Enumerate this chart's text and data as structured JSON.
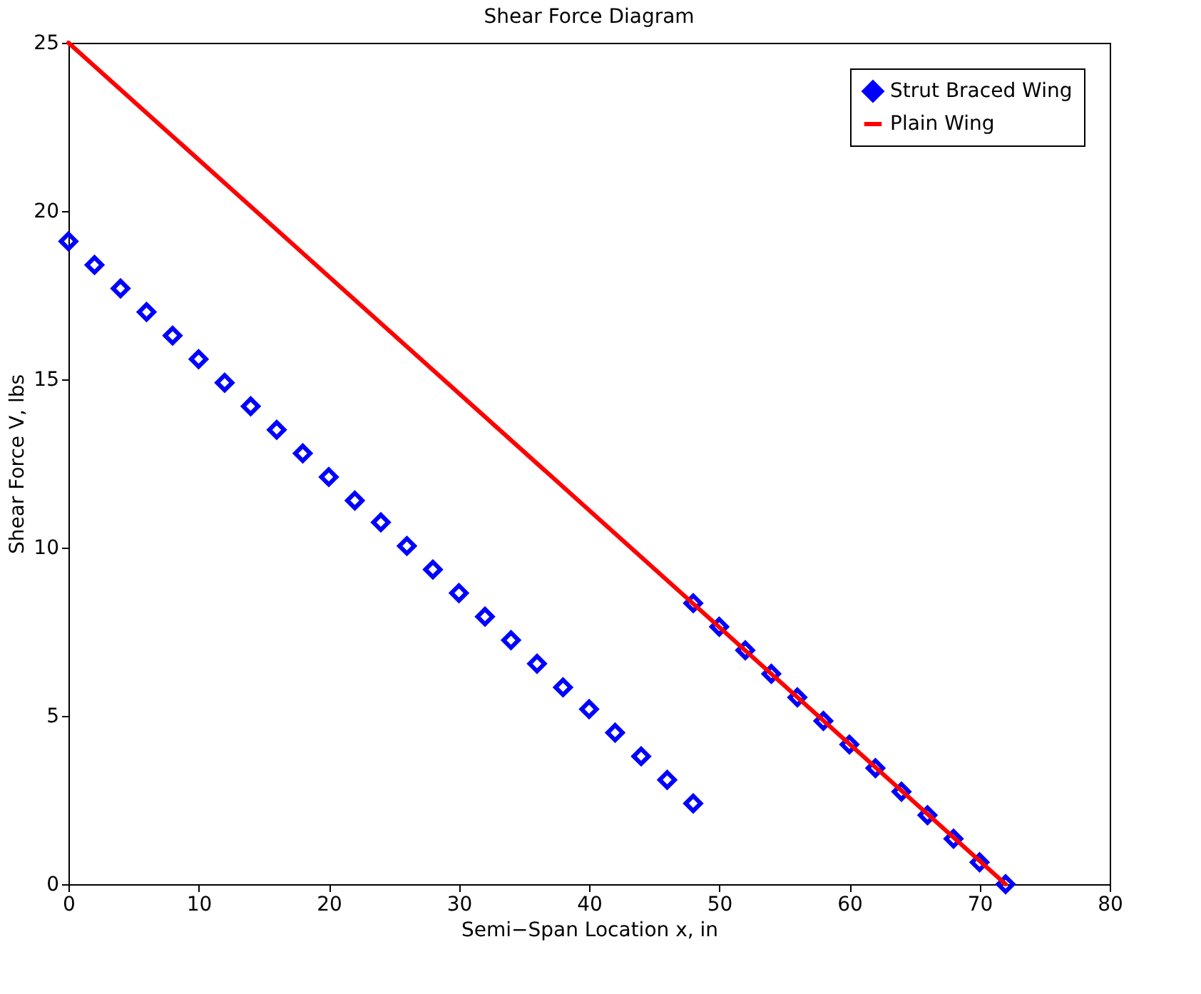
{
  "chart_data": {
    "type": "scatter",
    "title": "Shear Force Diagram",
    "xlabel": "Semi−Span Location x, in",
    "ylabel": "Shear Force V, lbs",
    "xlim": [
      0,
      80
    ],
    "ylim": [
      0,
      25
    ],
    "xticks": [
      0,
      10,
      20,
      30,
      40,
      50,
      60,
      70,
      80
    ],
    "yticks": [
      0,
      5,
      10,
      15,
      20,
      25
    ],
    "grid": false,
    "legend": "top right",
    "series": [
      {
        "name": "Strut Braced Wing",
        "type": "scatter",
        "marker": "diamond",
        "color": "#0000ff",
        "x": [
          0,
          2,
          4,
          6,
          8,
          10,
          12,
          14,
          16,
          18,
          20,
          22,
          24,
          26,
          28,
          30,
          32,
          34,
          36,
          38,
          40,
          42,
          44,
          46,
          48,
          48,
          50,
          52,
          54,
          56,
          58,
          60,
          62,
          64,
          66,
          68,
          70,
          72
        ],
        "values": [
          19.1,
          18.4,
          17.7,
          17.0,
          16.3,
          15.6,
          14.9,
          14.2,
          13.5,
          12.8,
          12.1,
          11.4,
          10.75,
          10.05,
          9.35,
          8.65,
          7.95,
          7.25,
          6.55,
          5.85,
          5.2,
          4.5,
          3.8,
          3.1,
          2.4,
          8.35,
          7.65,
          6.95,
          6.25,
          5.55,
          4.85,
          4.15,
          3.45,
          2.75,
          2.05,
          1.35,
          0.65,
          0
        ]
      },
      {
        "name": "Plain Wing",
        "type": "line",
        "line_style": "solid",
        "color": "#ff0000",
        "x": [
          0,
          72
        ],
        "values": [
          25,
          0
        ]
      }
    ]
  }
}
